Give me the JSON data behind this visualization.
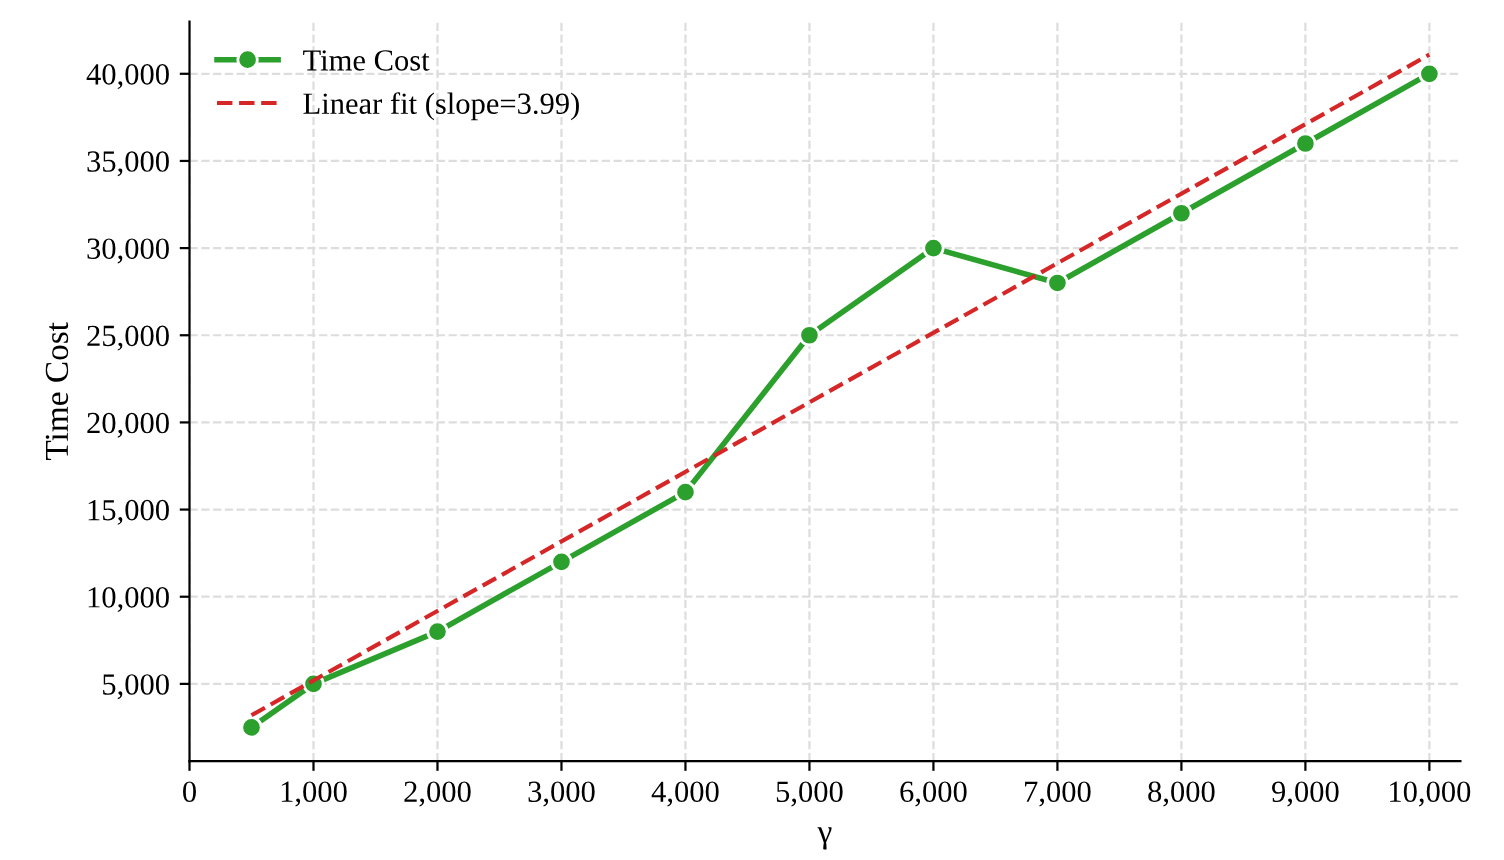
{
  "chart_data": {
    "type": "line",
    "xlabel": "γ",
    "ylabel": "Time Cost",
    "x": [
      500,
      1000,
      2000,
      3000,
      4000,
      5000,
      6000,
      7000,
      8000,
      9000,
      10000
    ],
    "series": [
      {
        "name": "Time Cost",
        "color": "#2ca02c",
        "values": [
          2500,
          5000,
          8000,
          12000,
          16000,
          25000,
          30000,
          28000,
          32000,
          36000,
          40000
        ],
        "marker": "circle",
        "line_style": "solid"
      },
      {
        "name": "Linear fit (slope=3.99)",
        "color": "#d62728",
        "x": [
          500,
          10000
        ],
        "values": [
          3200,
          41100
        ],
        "marker": "none",
        "line_style": "dashed"
      }
    ],
    "xlim": [
      0,
      10250
    ],
    "xticks": [
      {
        "value": 0,
        "label": "0"
      },
      {
        "value": 1000,
        "label": "1,000"
      },
      {
        "value": 2000,
        "label": "2,000"
      },
      {
        "value": 3000,
        "label": "3,000"
      },
      {
        "value": 4000,
        "label": "4,000"
      },
      {
        "value": 5000,
        "label": "5,000"
      },
      {
        "value": 6000,
        "label": "6,000"
      },
      {
        "value": 7000,
        "label": "7,000"
      },
      {
        "value": 8000,
        "label": "8,000"
      },
      {
        "value": 9000,
        "label": "9,000"
      },
      {
        "value": 10000,
        "label": "10,000"
      }
    ],
    "ylim": [
      570,
      43000
    ],
    "yticks": [
      {
        "value": 5000,
        "label": "5,000"
      },
      {
        "value": 10000,
        "label": "10,000"
      },
      {
        "value": 15000,
        "label": "15,000"
      },
      {
        "value": 20000,
        "label": "20,000"
      },
      {
        "value": 25000,
        "label": "25,000"
      },
      {
        "value": 30000,
        "label": "30,000"
      },
      {
        "value": 35000,
        "label": "35,000"
      },
      {
        "value": 40000,
        "label": "40,000"
      }
    ],
    "grid": true,
    "legend": "top left"
  }
}
